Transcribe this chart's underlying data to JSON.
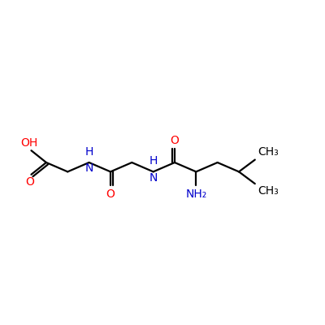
{
  "bg_color": "#ffffff",
  "bond_color": "#000000",
  "o_color": "#ff0000",
  "n_color": "#0000cc",
  "line_width": 1.6,
  "fontsize": 10,
  "xlim": [
    0.0,
    8.5
  ],
  "ylim": [
    1.2,
    3.8
  ],
  "figsize": [
    4.0,
    4.0
  ],
  "dpi": 100
}
